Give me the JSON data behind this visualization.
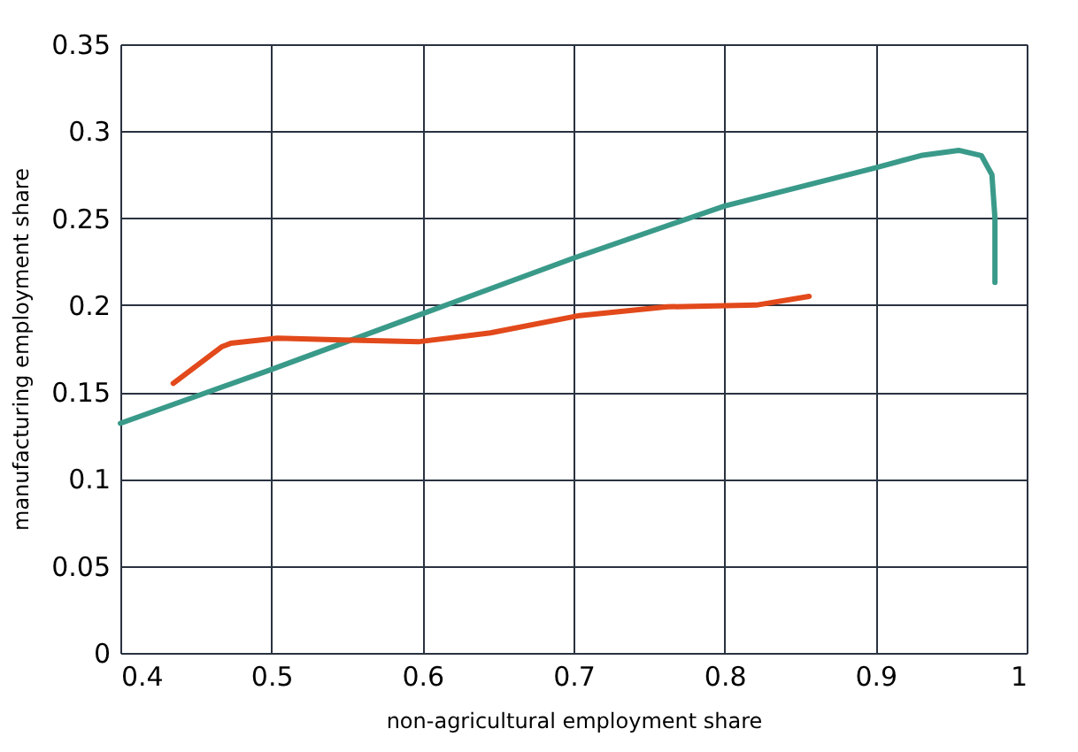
{
  "chart_data": {
    "type": "line",
    "xlabel": "non-agricultural employment share",
    "ylabel": "manufacturing employment share",
    "xlim": [
      0.4,
      1
    ],
    "xticks": [
      0.4,
      0.5,
      0.6,
      0.7,
      0.8,
      0.9,
      1
    ],
    "ylim": [
      0,
      0.35
    ],
    "yticks": [
      0,
      0.05,
      0.1,
      0.15,
      0.2,
      0.25,
      0.3,
      0.35
    ],
    "grid": true,
    "marker": "none",
    "line_style": "solid",
    "series": [
      {
        "color": "#3a9a8a",
        "x": [
          0.4,
          0.5,
          0.6,
          0.7,
          0.8,
          0.9,
          0.93,
          0.955,
          0.97,
          0.977,
          0.979,
          0.979
        ],
        "values": [
          0.132,
          0.163,
          0.195,
          0.227,
          0.257,
          0.279,
          0.286,
          0.289,
          0.286,
          0.275,
          0.25,
          0.213
        ]
      },
      {
        "color": "#e2491b",
        "x": [
          0.435,
          0.467,
          0.473,
          0.504,
          0.547,
          0.598,
          0.645,
          0.704,
          0.762,
          0.821,
          0.856
        ],
        "values": [
          0.155,
          0.176,
          0.178,
          0.181,
          0.18,
          0.179,
          0.184,
          0.194,
          0.199,
          0.2,
          0.205
        ]
      }
    ]
  }
}
